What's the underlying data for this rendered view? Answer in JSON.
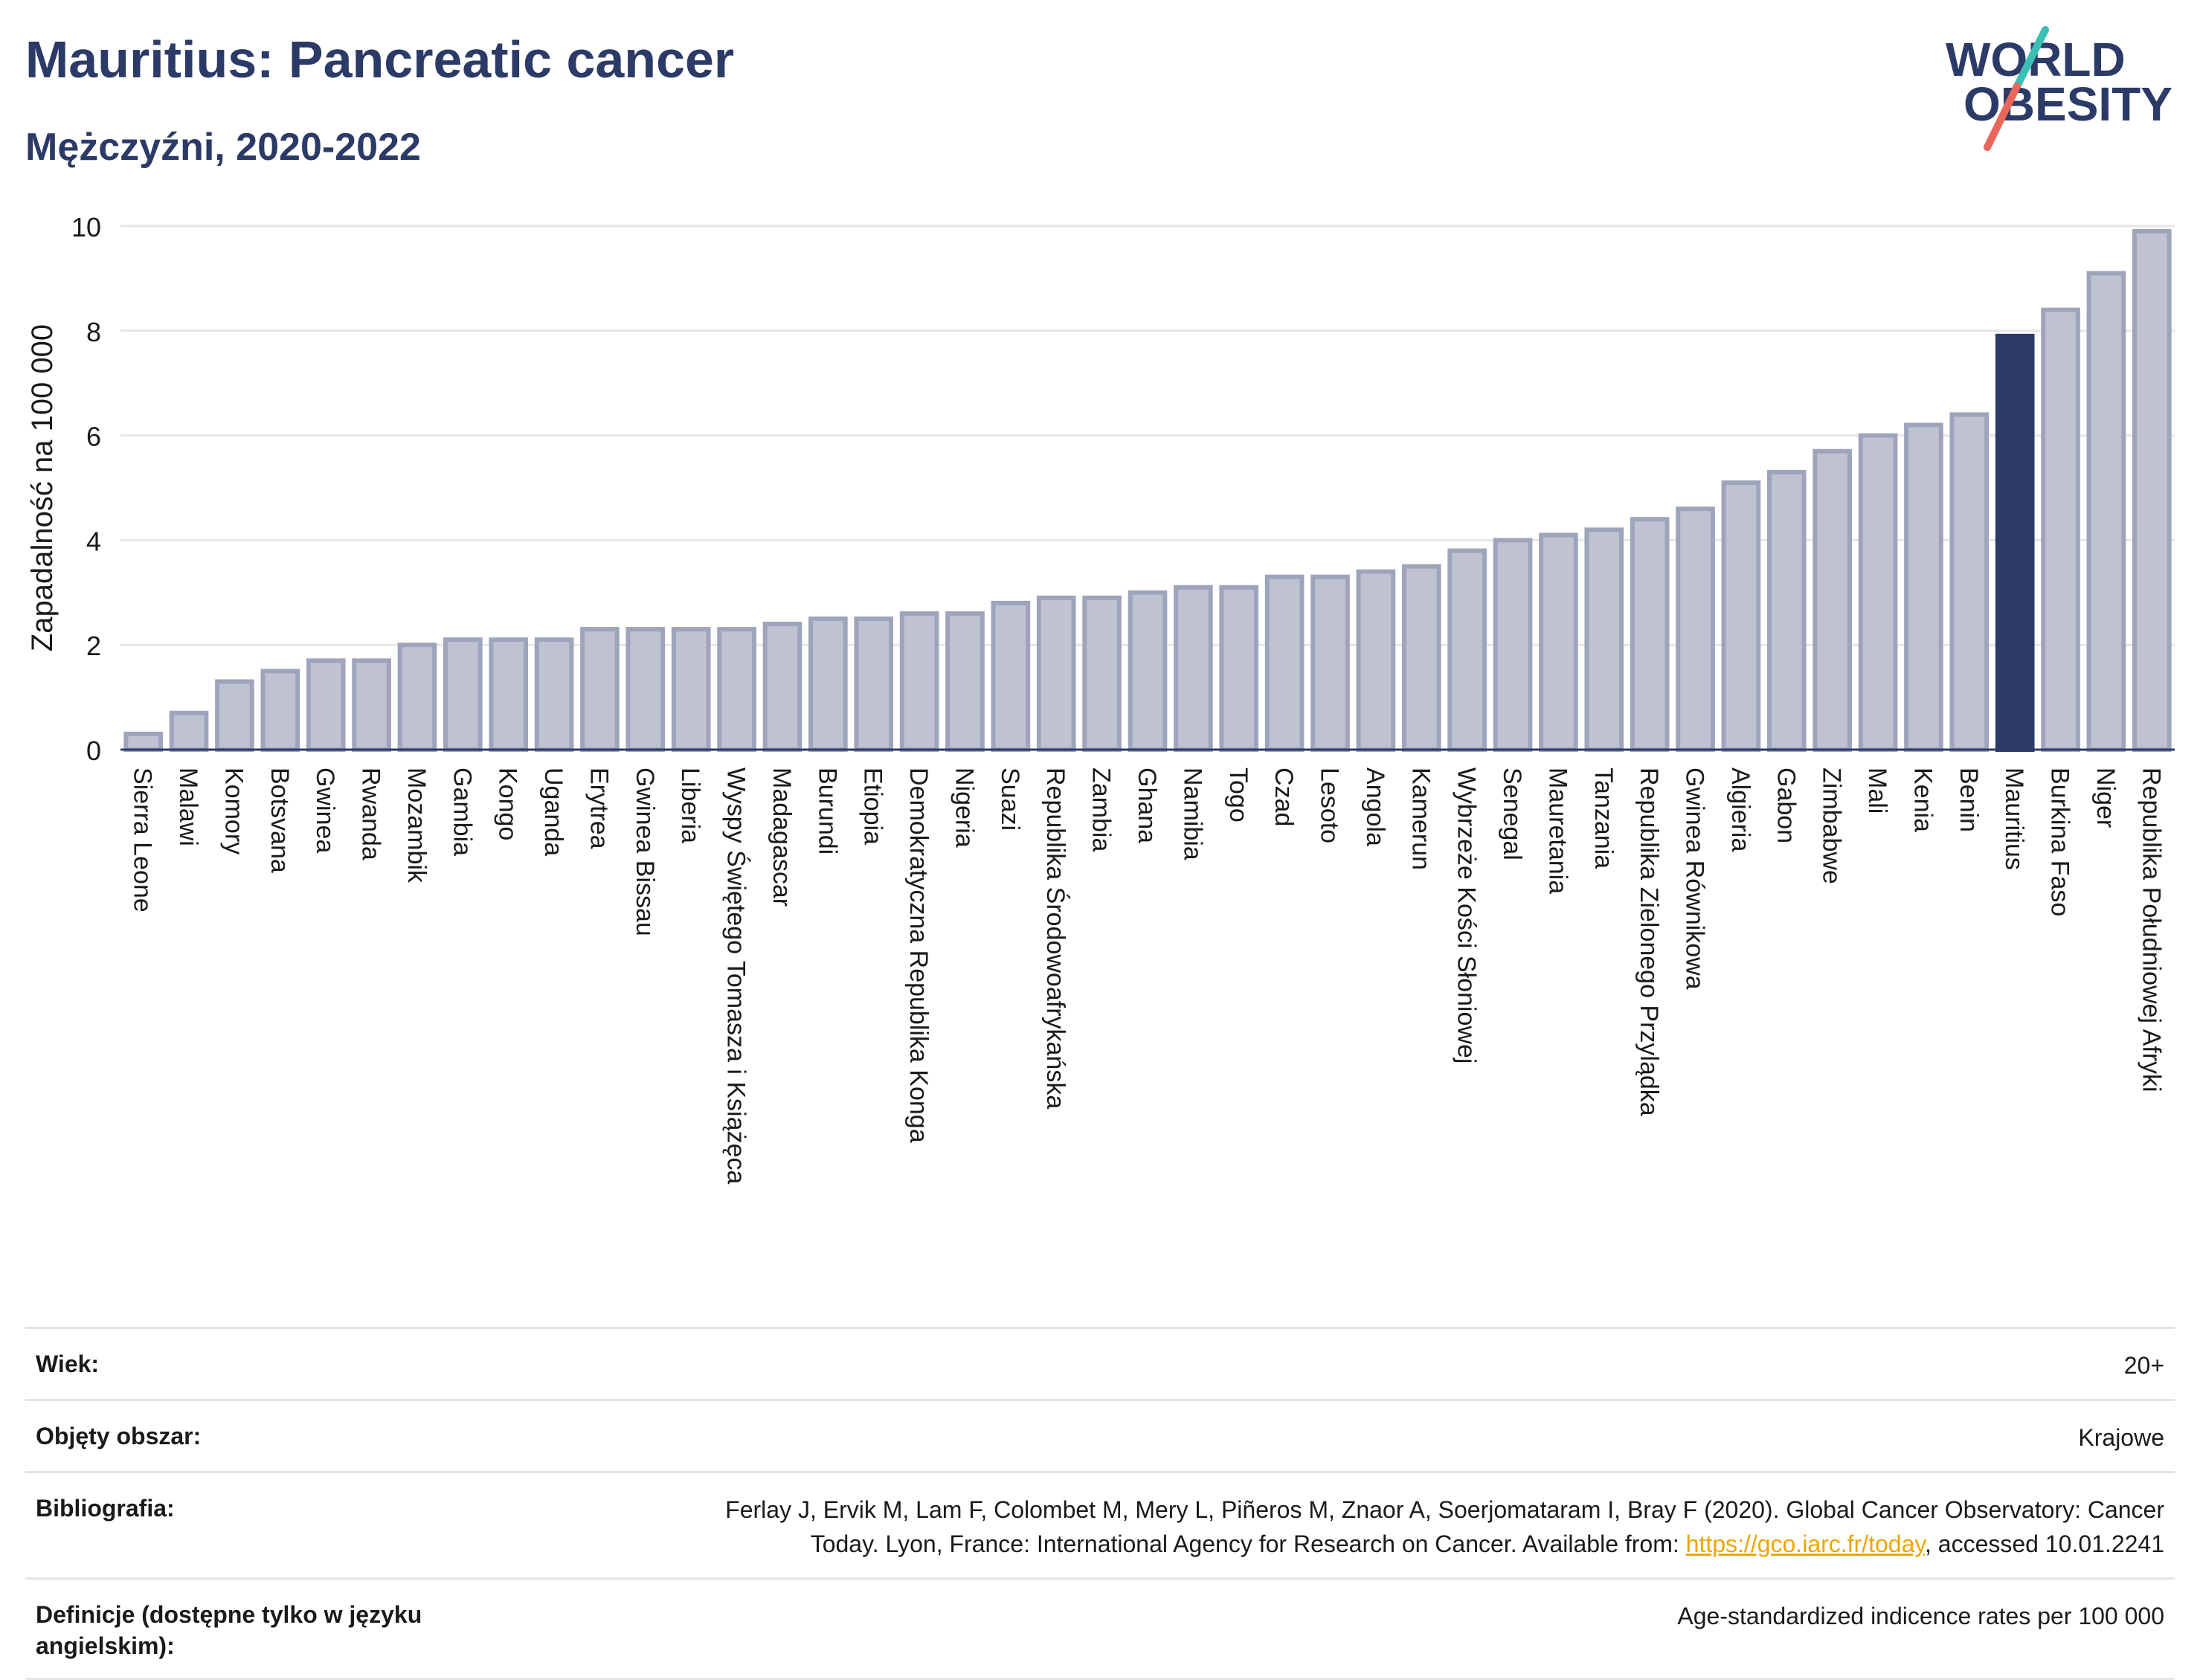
{
  "header": {
    "title": "Mauritius: Pancreatic cancer",
    "subtitle": "Mężczyźni, 2020-2022"
  },
  "logo": {
    "line1": "WORLD",
    "line2": "OBESITY",
    "text_color": "#2b3a67",
    "slash_colors": [
      "#3bbfb5",
      "#e8675a"
    ]
  },
  "colors": {
    "bar": "#bfc3d1",
    "bar_stroke": "#9ea4bb",
    "highlight": "#2b3a67",
    "grid": "#e6e6e6",
    "axis": "#2b3a67"
  },
  "chart_data": {
    "type": "bar",
    "ylabel": "Zapadalność na 100 000",
    "ylim": [
      0,
      10
    ],
    "yticks": [
      0,
      2,
      4,
      6,
      8,
      10
    ],
    "grid": true,
    "highlight": "Mauritius",
    "categories": [
      "Sierra Leone",
      "Malawi",
      "Komory",
      "Botsvana",
      "Gwinea",
      "Rwanda",
      "Mozambik",
      "Gambia",
      "Kongo",
      "Uganda",
      "Erytrea",
      "Gwinea Bissau",
      "Liberia",
      "Wyspy Świętego Tomasza i Książęca",
      "Madagascar",
      "Burundi",
      "Etiopia",
      "Demokratyczna Republika Konga",
      "Nigeria",
      "Suazi",
      "Republika Środowoafrykańska",
      "Zambia",
      "Ghana",
      "Namibia",
      "Togo",
      "Czad",
      "Lesoto",
      "Angola",
      "Kamerun",
      "Wybrzeże Kości Słoniowej",
      "Senegal",
      "Mauretania",
      "Tanzania",
      "Republika Zielonego Przylądka",
      "Gwinea Równikowa",
      "Algieria",
      "Gabon",
      "Zimbabwe",
      "Mali",
      "Kenia",
      "Benin",
      "Mauritius",
      "Burkina Faso",
      "Niger",
      "Republika Południowej Afryki"
    ],
    "values": [
      0.3,
      0.7,
      1.3,
      1.5,
      1.7,
      1.7,
      2.0,
      2.1,
      2.1,
      2.1,
      2.3,
      2.3,
      2.3,
      2.3,
      2.4,
      2.5,
      2.5,
      2.6,
      2.6,
      2.8,
      2.9,
      2.9,
      3.0,
      3.1,
      3.1,
      3.3,
      3.3,
      3.4,
      3.5,
      3.8,
      4.0,
      4.1,
      4.2,
      4.4,
      4.6,
      5.1,
      5.3,
      5.7,
      6.0,
      6.2,
      6.4,
      7.9,
      8.4,
      9.1,
      9.9
    ]
  },
  "info": {
    "age_label": "Wiek:",
    "age_value": "20+",
    "area_label": "Objęty obszar:",
    "area_value": "Krajowe",
    "bib_label": "Bibliografia:",
    "bib_text_1": "Ferlay J, Ervik M, Lam F, Colombet M, Mery L, Piñeros M, Znaor A, Soerjomataram I, Bray F (2020). Global Cancer Observatory: Cancer",
    "bib_text_2": "Today. Lyon, France: International Agency for Research on Cancer. Available from: ",
    "bib_link": "https://gco.iarc.fr/today",
    "bib_text_3": ", accessed 10.01.2241",
    "def_label": "Definicje (dostępne tylko w języku angielskim):",
    "def_value": "Age-standardized indicence rates per 100 000"
  }
}
